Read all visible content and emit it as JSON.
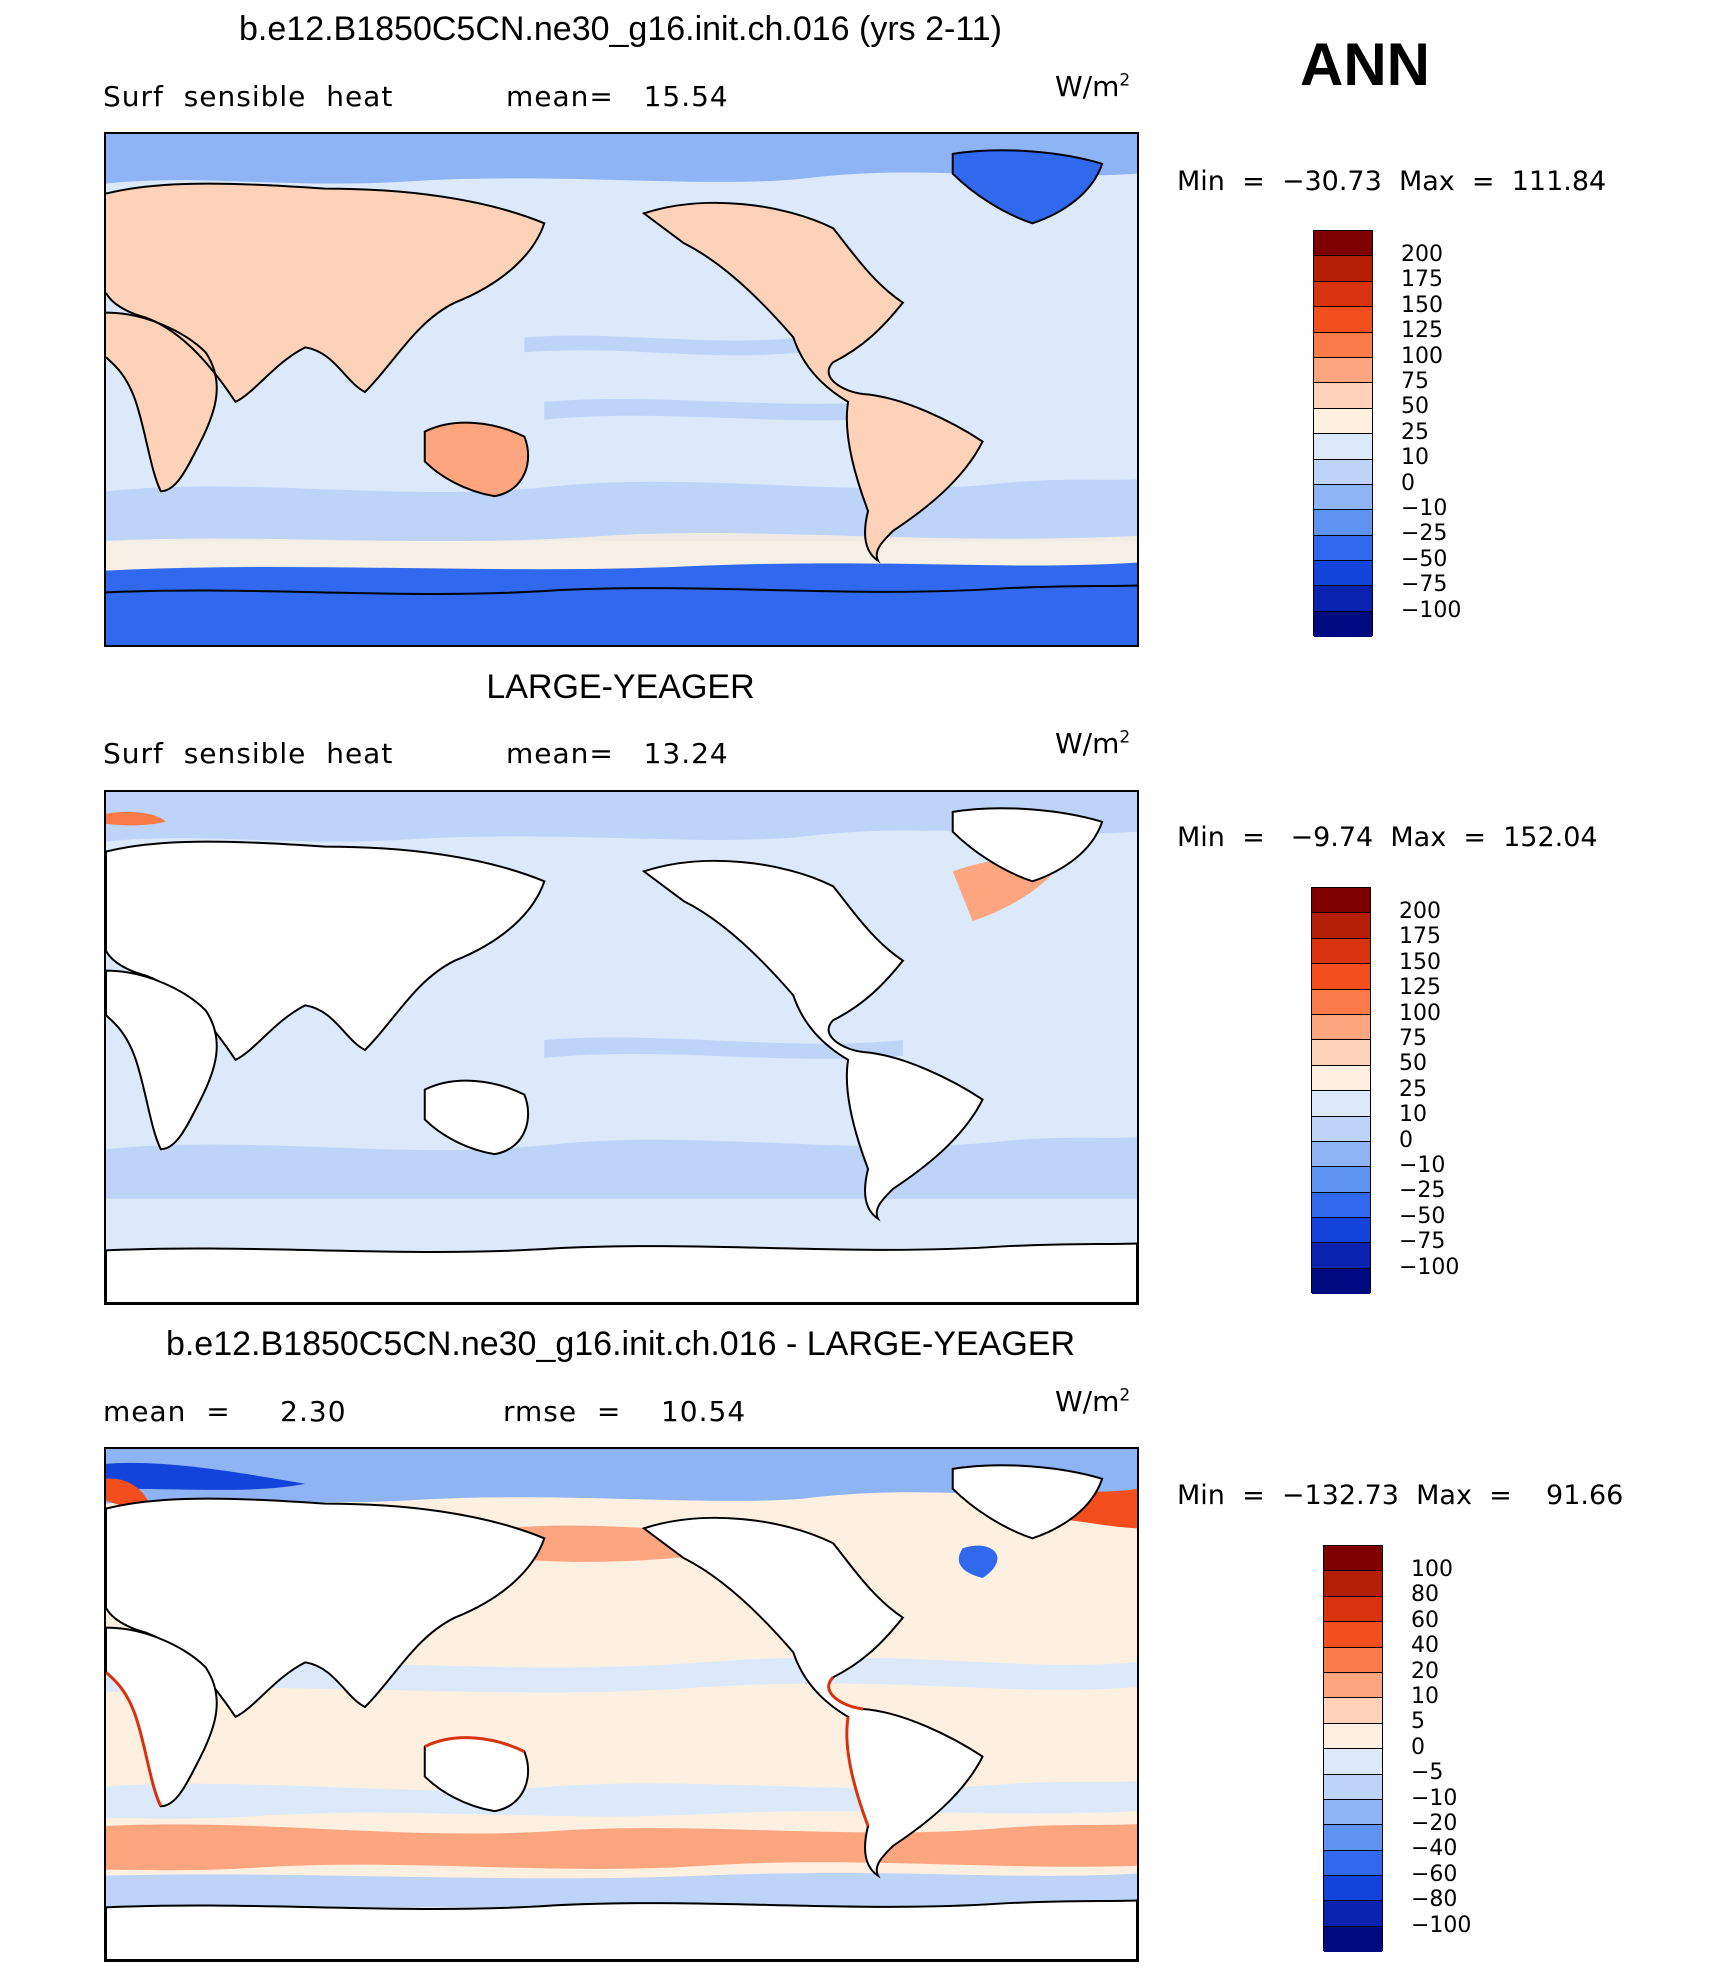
{
  "season": "ANN",
  "panels": [
    {
      "title": "b.e12.B1850C5CN.ne30_g16.init.ch.016 (yrs 2-11)",
      "left_label": "Surf  sensible  heat",
      "right_label": "mean=   15.54",
      "units": "W/m",
      "units_exp": "2",
      "stats": "Min  =  −30.73  Max  =  111.84",
      "legend_colors": [
        "#7f0000",
        "#b31e05",
        "#d9320f",
        "#f24e1e",
        "#fa7a48",
        "#fca57f",
        "#fdd2b8",
        "#fdf0e0",
        "#dbe9fa",
        "#bdd4f8",
        "#8fb4f5",
        "#5e93f2",
        "#3069ee",
        "#1343db",
        "#0a22b0",
        "#000a80"
      ],
      "legend_labels": [
        "200",
        "175",
        "150",
        "125",
        "100",
        "75",
        "50",
        "25",
        "10",
        "0",
        "−10",
        "−25",
        "−50",
        "−75",
        "−100"
      ]
    },
    {
      "title": "LARGE-YEAGER",
      "left_label": "Surf  sensible  heat",
      "right_label": "mean=   13.24",
      "units": "W/m",
      "units_exp": "2",
      "stats": "Min  =   −9.74  Max  =  152.04",
      "legend_colors": [
        "#7f0000",
        "#b31e05",
        "#d9320f",
        "#f24e1e",
        "#fa7a48",
        "#fca57f",
        "#fdd2b8",
        "#fdf0e0",
        "#dbe9fa",
        "#bdd4f8",
        "#8fb4f5",
        "#5e93f2",
        "#3069ee",
        "#1343db",
        "#0a22b0",
        "#000a80"
      ],
      "legend_labels": [
        "200",
        "175",
        "150",
        "125",
        "100",
        "75",
        "50",
        "25",
        "10",
        "0",
        "−10",
        "−25",
        "−50",
        "−75",
        "−100"
      ]
    },
    {
      "title": "b.e12.B1850C5CN.ne30_g16.init.ch.016 - LARGE-YEAGER",
      "left_label": "mean  =     2.30",
      "right_label": "rmse  =    10.54",
      "units": "W/m",
      "units_exp": "2",
      "stats": "Min  =  −132.73  Max  =    91.66",
      "legend_colors": [
        "#7f0000",
        "#b31e05",
        "#d9320f",
        "#f24e1e",
        "#fa7a48",
        "#fca57f",
        "#fdd2b8",
        "#fdf0e0",
        "#dbe9fa",
        "#bdd4f8",
        "#8fb4f5",
        "#5e93f2",
        "#3069ee",
        "#1343db",
        "#0a22b0",
        "#000a80"
      ],
      "legend_labels": [
        "100",
        "80",
        "60",
        "40",
        "20",
        "10",
        "5",
        "0",
        "−5",
        "−10",
        "−20",
        "−40",
        "−60",
        "−80",
        "−100"
      ]
    }
  ]
}
